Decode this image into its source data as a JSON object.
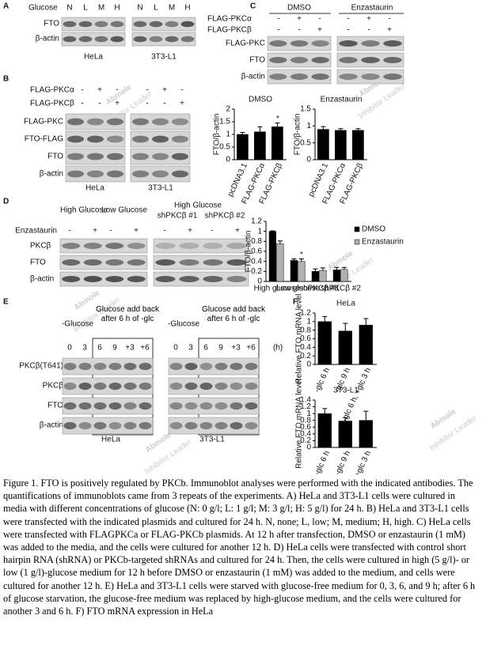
{
  "watermark": "Abmole",
  "watermark_sub": "Inhibitor Leader",
  "panel_A": {
    "letter": "A",
    "row_label": "Glucose",
    "conditions": [
      "N",
      "L",
      "M",
      "H",
      "N",
      "L",
      "M",
      "H"
    ],
    "blots": [
      "FTO",
      "β-actin"
    ],
    "cells": [
      "HeLa",
      "3T3-L1"
    ]
  },
  "panel_B": {
    "letter": "B",
    "rows": [
      {
        "label": "FLAG-PKCα",
        "marks": [
          "-",
          "+",
          "-",
          "-",
          "+",
          "-"
        ]
      },
      {
        "label": "FLAG-PKCβ",
        "marks": [
          "-",
          "-",
          "+",
          "-",
          "-",
          "+"
        ]
      }
    ],
    "blots": [
      "FLAG-PKC",
      "FTO-FLAG",
      "FTO",
      "β-actin"
    ],
    "cells": [
      "HeLa",
      "3T3-L1"
    ]
  },
  "panel_C": {
    "letter": "C",
    "groups": [
      "DMSO",
      "Enzastaurin"
    ],
    "rows": [
      {
        "label": "FLAG-PKCα",
        "marks": [
          "-",
          "+",
          "-",
          "-",
          "+",
          "-"
        ]
      },
      {
        "label": "FLAG-PKCβ",
        "marks": [
          "-",
          "-",
          "+",
          "-",
          "-",
          "+"
        ]
      }
    ],
    "blots": [
      "FLAG-PKC",
      "FTO",
      "β-actin"
    ],
    "charts": [
      {
        "type": "bar",
        "title": "DMSO",
        "ylabel": "FTO/β-actin",
        "categories": [
          "pcDNA3.1",
          "FLAG-PKCα",
          "FLAG-PKCβ"
        ],
        "values": [
          1,
          1.1,
          1.3
        ],
        "errors": [
          0.08,
          0.2,
          0.15
        ],
        "color": "#000000",
        "ylim": [
          0,
          2
        ],
        "yticks": [
          0,
          0.5,
          1,
          1.5,
          2
        ],
        "annotation": "*"
      },
      {
        "type": "bar",
        "title": "Enzastaurin",
        "ylabel": "FTO/β-actin",
        "categories": [
          "pcDNA3.1",
          "FLAG-PKCα",
          "FLAG-PKCβ"
        ],
        "values": [
          0.9,
          0.87,
          0.87
        ],
        "errors": [
          0.08,
          0.05,
          0.05
        ],
        "color": "#000000",
        "ylim": [
          0,
          1.5
        ],
        "yticks": [
          0,
          0.5,
          1,
          1.5
        ]
      }
    ]
  },
  "panel_D": {
    "letter": "D",
    "groups": [
      "High Glucose",
      "Low Glucose",
      "High Glucose",
      "shPKCβ #1",
      "shPKCβ #2"
    ],
    "row_label": "Enzastaurin",
    "marks": [
      "-",
      "+",
      "-",
      "+",
      "-",
      "+",
      "-",
      "+"
    ],
    "blots": [
      "PKCβ",
      "FTO",
      "β-actin"
    ],
    "chart": {
      "type": "bar",
      "ylabel": "FTO/β-actin",
      "categories": [
        "High glucose",
        "Low glucose",
        "shPKCβ #1",
        "shPKCβ #2"
      ],
      "series": [
        {
          "name": "DMSO",
          "color": "#000000",
          "values": [
            1,
            0.42,
            0.2,
            0.23
          ],
          "errors": [
            0.01,
            0.03,
            0.05,
            0.05
          ]
        },
        {
          "name": "Enzastaurin",
          "color": "#b0b0b0",
          "values": [
            0.75,
            0.4,
            0.22,
            0.24
          ],
          "errors": [
            0.06,
            0.05,
            0.05,
            0.04
          ]
        }
      ],
      "ylim": [
        0,
        1.2
      ],
      "yticks": [
        0,
        0.2,
        0.4,
        0.6,
        0.8,
        1,
        1.2
      ],
      "annotation": "*"
    }
  },
  "panel_E": {
    "letter": "E",
    "headers": [
      "-Glucose",
      "Glucose add back after 6 h of -glc",
      "-Glucose",
      "Glucose add back after 6 h of -glc"
    ],
    "times": [
      "0",
      "3",
      "6",
      "9",
      "+3",
      "+6",
      "0",
      "3",
      "6",
      "9",
      "+3",
      "+6"
    ],
    "unit": "(h)",
    "blots": [
      "PKCβ(T641)",
      "PKCβ",
      "FTO",
      "β-actin"
    ],
    "cells": [
      "HeLa",
      "3T3-L1"
    ]
  },
  "panel_F": {
    "letter": "F",
    "charts": [
      {
        "type": "bar",
        "title": "HeLa",
        "ylabel": "Relative FTO mRNA level",
        "categories": [
          "-glc 6 h",
          "-glc 9 h",
          "-glc 6 h, +glc 3 h"
        ],
        "values": [
          1,
          0.78,
          0.92
        ],
        "errors": [
          0.12,
          0.18,
          0.15
        ],
        "color": "#000000",
        "ylim": [
          0,
          1.2
        ],
        "yticks": [
          0,
          0.2,
          0.4,
          0.6,
          0.8,
          1,
          1.2
        ]
      },
      {
        "type": "bar",
        "title": "3T3-L1",
        "ylabel": "Relative FTO mRNA level",
        "categories": [
          "-glc 6 h",
          "-glc 9 h",
          "-glc 6 h, +glc 3 h"
        ],
        "values": [
          1,
          0.78,
          0.8
        ],
        "errors": [
          0.15,
          0.1,
          0.27
        ],
        "color": "#000000",
        "ylim": [
          0,
          1.4
        ],
        "yticks": [
          0,
          0.2,
          0.4,
          0.6,
          0.8,
          1,
          1.2,
          1.4
        ]
      }
    ]
  },
  "caption": "Figure 1. FTO is positively regulated by PKCb. Immunoblot analyses were performed with the indicated antibodies. The quantifications of immunoblots came from 3 repeats of the experiments. A) HeLa and 3T3-L1 cells were cultured in media with different concentrations of glucose (N: 0 g/l; L: 1 g/l; M: 3 g/l; H: 5 g/l) for 24 h. B) HeLa and 3T3-L1 cells were transfected with the indicated plasmids and cultured for 24 h. N, none; L, low; M, medium; H, high. C) HeLa cells were transfected with FLAGPKCa or FLAG-PKCb plasmids. At 12 h after transfection, DMSO or enzastaurin (1 mM) was added to the media, and the cells were cultured for another 12 h. D) HeLa cells were transfected with control short hairpin RNA (shRNA) or PKCb-targeted shRNAs and cultured for 24 h. Then, the cells were cultured in high (5 g/l)- or low (1 g/l)-glucose medium for 12 h before DMSO or enzastaurin (1 mM) was added to the medium, and cells were cultured for another 12 h. E) HeLa and 3T3-L1 cells were starved with glucose-free medium for 0, 3, 6, and 9 h; after 6 h of glucose starvation, the glucose-free medium was replaced by high-glucose medium, and the cells were cultured for another 3 and 6 h. F) FTO mRNA expression in HeLa"
}
